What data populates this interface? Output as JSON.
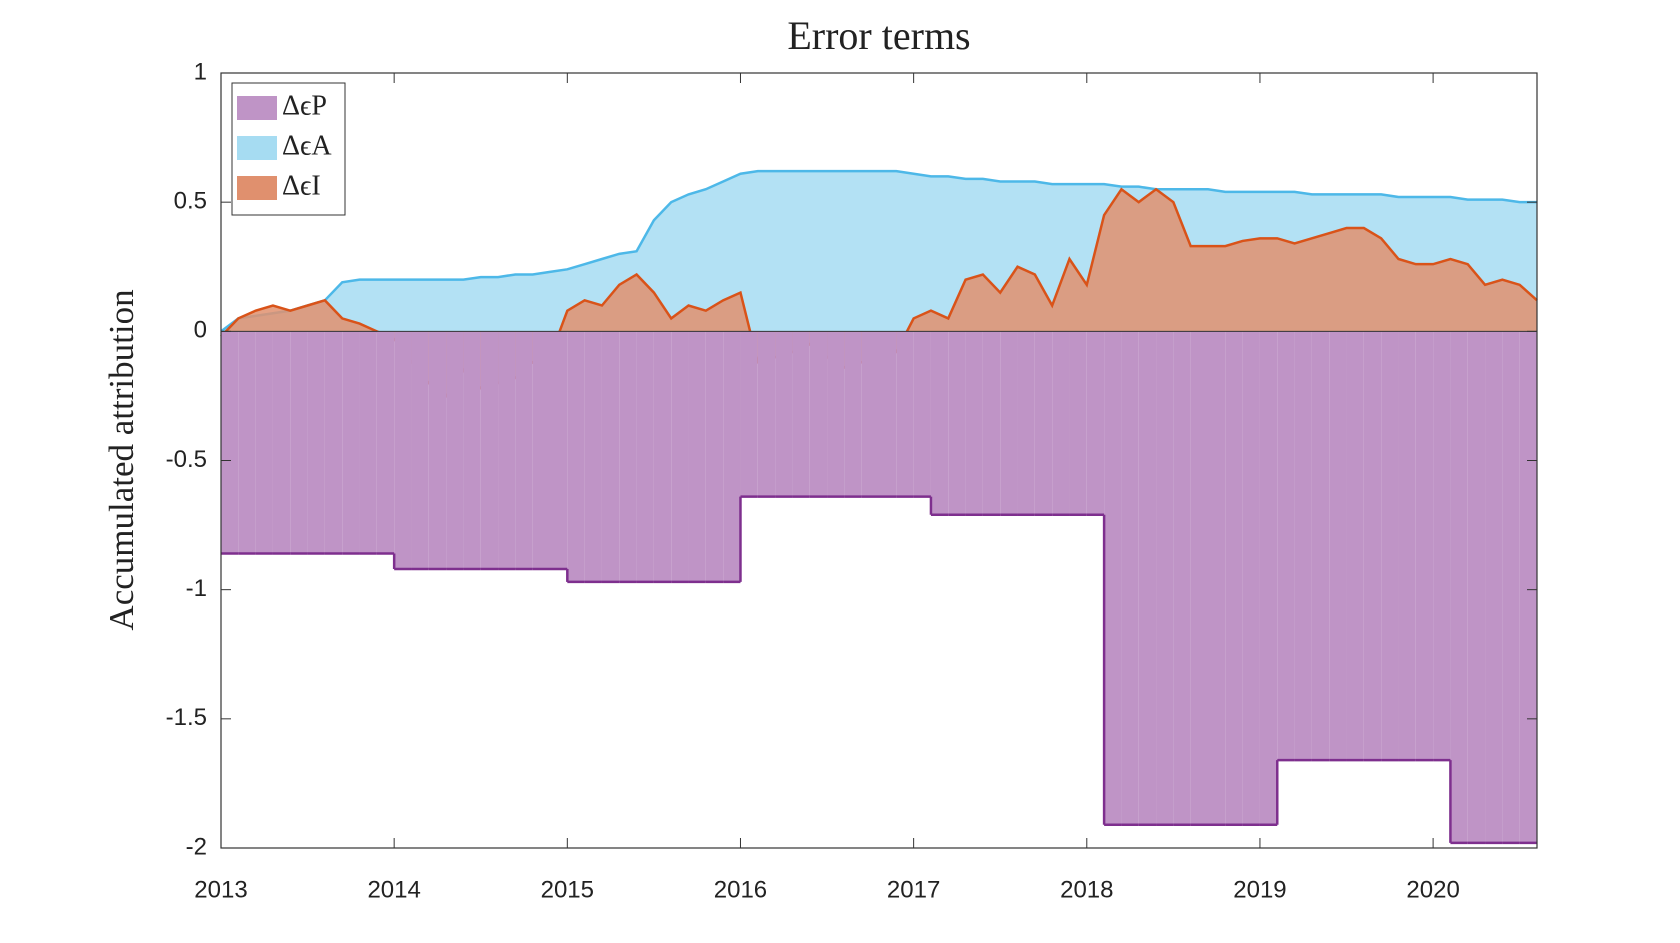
{
  "chart_data": {
    "type": "area",
    "title": "Error terms",
    "y_label": "Accumulated attribution",
    "x": [
      2013.0,
      2013.1,
      2013.2,
      2013.3,
      2013.4,
      2013.5,
      2013.6,
      2013.7,
      2013.8,
      2013.9,
      2014.0,
      2014.1,
      2014.2,
      2014.3,
      2014.4,
      2014.5,
      2014.6,
      2014.7,
      2014.8,
      2014.9,
      2015.0,
      2015.1,
      2015.2,
      2015.3,
      2015.4,
      2015.5,
      2015.6,
      2015.7,
      2015.8,
      2015.9,
      2016.0,
      2016.1,
      2016.2,
      2016.3,
      2016.4,
      2016.5,
      2016.6,
      2016.7,
      2016.8,
      2016.9,
      2017.0,
      2017.1,
      2017.2,
      2017.3,
      2017.4,
      2017.5,
      2017.6,
      2017.7,
      2017.8,
      2017.9,
      2018.0,
      2018.1,
      2018.2,
      2018.3,
      2018.4,
      2018.5,
      2018.6,
      2018.7,
      2018.8,
      2018.9,
      2019.0,
      2019.1,
      2019.2,
      2019.3,
      2019.4,
      2019.5,
      2019.6,
      2019.7,
      2019.8,
      2019.9,
      2020.0,
      2020.1,
      2020.2,
      2020.3,
      2020.4,
      2020.5,
      2020.6
    ],
    "series": [
      {
        "name": "ΔϵA",
        "color": "#4db8e8",
        "fill": "#a6dcf2",
        "values": [
          0.0,
          0.05,
          0.06,
          0.07,
          0.08,
          0.1,
          0.12,
          0.19,
          0.2,
          0.2,
          0.2,
          0.2,
          0.2,
          0.2,
          0.2,
          0.21,
          0.21,
          0.22,
          0.22,
          0.23,
          0.24,
          0.26,
          0.28,
          0.3,
          0.31,
          0.43,
          0.5,
          0.53,
          0.55,
          0.58,
          0.61,
          0.62,
          0.62,
          0.62,
          0.62,
          0.62,
          0.62,
          0.62,
          0.62,
          0.62,
          0.61,
          0.6,
          0.6,
          0.59,
          0.59,
          0.58,
          0.58,
          0.58,
          0.57,
          0.57,
          0.57,
          0.57,
          0.56,
          0.56,
          0.55,
          0.55,
          0.55,
          0.55,
          0.54,
          0.54,
          0.54,
          0.54,
          0.54,
          0.53,
          0.53,
          0.53,
          0.53,
          0.53,
          0.52,
          0.52,
          0.52,
          0.52,
          0.51,
          0.51,
          0.51,
          0.5,
          0.5
        ]
      },
      {
        "name": "ΔϵI",
        "color": "#d95319",
        "fill": "#e0906e",
        "values": [
          -0.02,
          0.05,
          0.08,
          0.1,
          0.08,
          0.1,
          0.12,
          0.05,
          0.03,
          0.0,
          -0.03,
          -0.12,
          -0.2,
          -0.25,
          -0.15,
          -0.22,
          -0.2,
          -0.18,
          -0.12,
          -0.1,
          0.08,
          0.12,
          0.1,
          0.18,
          0.22,
          0.15,
          0.05,
          0.1,
          0.08,
          0.12,
          0.15,
          -0.12,
          -0.1,
          -0.08,
          -0.05,
          -0.1,
          -0.14,
          -0.12,
          -0.1,
          -0.08,
          0.05,
          0.08,
          0.05,
          0.2,
          0.22,
          0.15,
          0.25,
          0.22,
          0.1,
          0.28,
          0.18,
          0.45,
          0.55,
          0.5,
          0.55,
          0.5,
          0.33,
          0.33,
          0.33,
          0.35,
          0.36,
          0.36,
          0.34,
          0.36,
          0.38,
          0.4,
          0.4,
          0.36,
          0.28,
          0.26,
          0.26,
          0.28,
          0.26,
          0.18,
          0.2,
          0.18,
          0.12
        ]
      },
      {
        "name": "ΔϵP",
        "color": "#7e2f8e",
        "fill": "#bf94c6",
        "step": "post",
        "values": [
          -0.86,
          -0.86,
          -0.86,
          -0.86,
          -0.86,
          -0.86,
          -0.86,
          -0.86,
          -0.86,
          -0.86,
          -0.92,
          -0.92,
          -0.92,
          -0.92,
          -0.92,
          -0.92,
          -0.92,
          -0.92,
          -0.92,
          -0.92,
          -0.97,
          -0.97,
          -0.97,
          -0.97,
          -0.97,
          -0.97,
          -0.97,
          -0.97,
          -0.97,
          -0.97,
          -0.64,
          -0.64,
          -0.64,
          -0.64,
          -0.64,
          -0.64,
          -0.64,
          -0.64,
          -0.64,
          -0.64,
          -0.64,
          -0.71,
          -0.71,
          -0.71,
          -0.71,
          -0.71,
          -0.71,
          -0.71,
          -0.71,
          -0.71,
          -0.71,
          -1.91,
          -1.91,
          -1.91,
          -1.91,
          -1.91,
          -1.91,
          -1.91,
          -1.91,
          -1.91,
          -1.91,
          -1.66,
          -1.66,
          -1.66,
          -1.66,
          -1.66,
          -1.66,
          -1.66,
          -1.66,
          -1.66,
          -1.66,
          -1.98,
          -1.98,
          -1.98,
          -1.98,
          -1.98,
          -1.98
        ]
      }
    ],
    "legend_order": [
      2,
      0,
      1
    ],
    "legend": "upper left",
    "xlim": [
      2013,
      2020.6
    ],
    "xticks": [
      2013,
      2014,
      2015,
      2016,
      2017,
      2018,
      2019,
      2020
    ],
    "ylim": [
      -2,
      1
    ],
    "yticks": [
      -2,
      -1.5,
      -1,
      -0.5,
      0,
      0.5,
      1
    ]
  }
}
